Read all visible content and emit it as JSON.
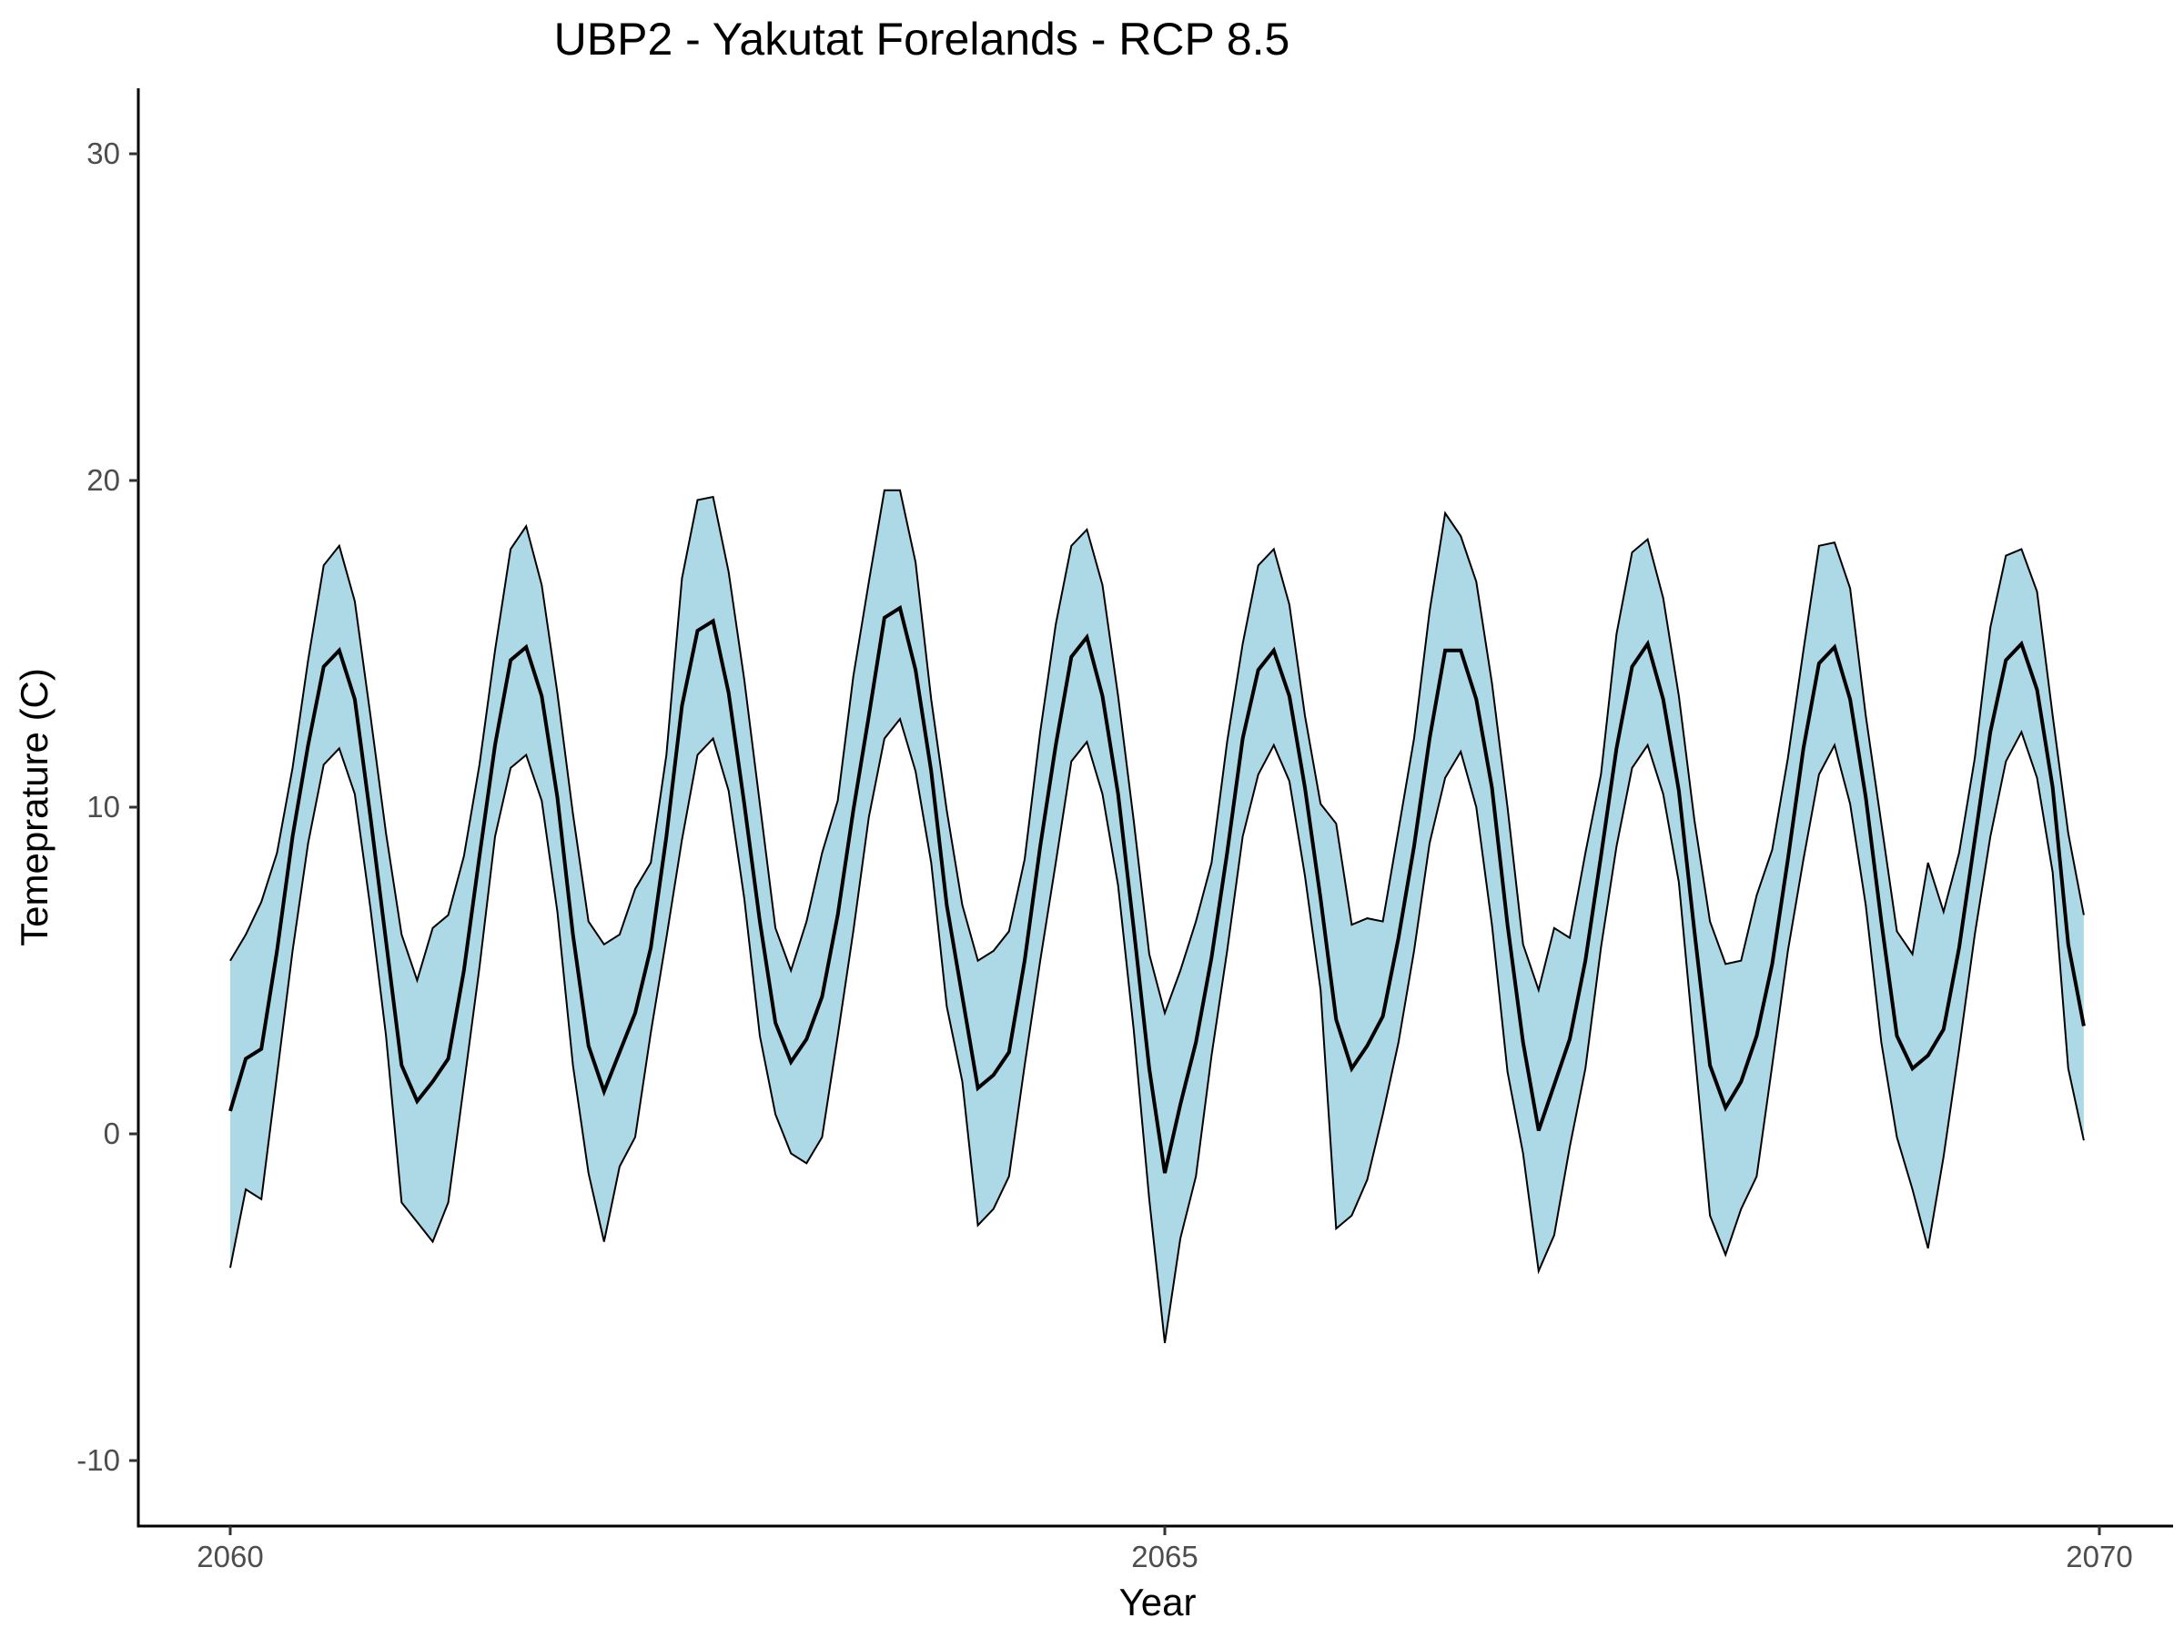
{
  "chart_data": {
    "type": "line",
    "title": "UBP2 - Yakutat Forelands - RCP 8.5",
    "xlabel": "Year",
    "ylabel": "Temeprature (C)",
    "xlim": [
      2059.5,
      2070.2
    ],
    "ylim": [
      -12,
      32
    ],
    "x_ticks": [
      2060,
      2065,
      2070
    ],
    "x_tick_labels": [
      "2060",
      "2065",
      "2070"
    ],
    "y_ticks": [
      -10,
      0,
      10,
      20,
      30
    ],
    "y_tick_labels": [
      "-10",
      "0",
      "10",
      "20",
      "30"
    ],
    "grid": false,
    "legend": "none",
    "band_fill_color": "#add8e6",
    "line_color": "#000000",
    "x_start": 2060,
    "x_step_months": 1,
    "series": [
      {
        "role": "upper",
        "values": [
          5.3,
          6.1,
          7.1,
          8.6,
          11.2,
          14.5,
          17.4,
          18.0,
          16.3,
          12.8,
          9.2,
          6.1,
          4.7,
          6.3,
          6.7,
          8.5,
          11.3,
          14.8,
          17.9,
          18.6,
          16.8,
          13.5,
          9.8,
          6.5,
          5.8,
          6.1,
          7.5,
          8.3,
          11.6,
          17.0,
          19.4,
          19.5,
          17.2,
          13.9,
          10.1,
          6.3,
          5.0,
          6.5,
          8.6,
          10.2,
          14.0,
          16.9,
          19.7,
          19.7,
          17.5,
          13.3,
          9.9,
          7.0,
          5.3,
          5.6,
          6.2,
          8.4,
          12.3,
          15.6,
          18.0,
          18.5,
          16.8,
          13.4,
          9.6,
          5.5,
          3.7,
          5.0,
          6.5,
          8.3,
          12.0,
          15.0,
          17.4,
          17.9,
          16.2,
          12.8,
          10.1,
          9.5,
          6.4,
          6.6,
          6.5,
          9.3,
          12.1,
          16.0,
          19.0,
          18.3,
          16.9,
          13.8,
          10.0,
          5.8,
          4.4,
          6.3,
          6.0,
          8.6,
          11.0,
          15.3,
          17.8,
          18.2,
          16.4,
          13.4,
          9.6,
          6.5,
          5.2,
          5.3,
          7.3,
          8.7,
          11.5,
          14.8,
          18.0,
          18.1,
          16.7,
          12.8,
          9.5,
          6.2,
          5.5,
          8.3,
          6.8,
          8.6,
          11.5,
          15.5,
          17.7,
          17.9,
          16.6,
          12.8,
          9.2,
          6.7
        ]
      },
      {
        "role": "mean",
        "values": [
          0.7,
          2.3,
          2.6,
          5.6,
          9.1,
          11.9,
          14.3,
          14.8,
          13.3,
          9.7,
          5.9,
          2.1,
          1.0,
          1.6,
          2.3,
          5.0,
          8.5,
          11.9,
          14.5,
          14.9,
          13.4,
          10.3,
          6.1,
          2.7,
          1.3,
          2.5,
          3.7,
          5.7,
          9.1,
          13.1,
          15.4,
          15.7,
          13.5,
          10.1,
          6.5,
          3.4,
          2.2,
          2.9,
          4.2,
          6.7,
          9.9,
          12.8,
          15.8,
          16.1,
          14.2,
          11.1,
          7.0,
          4.2,
          1.4,
          1.8,
          2.5,
          5.3,
          8.8,
          11.9,
          14.6,
          15.2,
          13.4,
          10.4,
          6.3,
          2.0,
          -1.2,
          0.9,
          2.8,
          5.4,
          8.6,
          12.1,
          14.2,
          14.8,
          13.4,
          10.6,
          7.2,
          3.5,
          2.0,
          2.7,
          3.6,
          6.0,
          8.8,
          12.1,
          14.8,
          14.8,
          13.3,
          10.6,
          6.4,
          2.8,
          0.1,
          1.5,
          2.9,
          5.3,
          8.5,
          11.8,
          14.3,
          15.0,
          13.3,
          10.5,
          6.2,
          2.1,
          0.8,
          1.6,
          3.0,
          5.2,
          8.4,
          11.8,
          14.4,
          14.9,
          13.3,
          10.3,
          6.5,
          3.0,
          2.0,
          2.4,
          3.2,
          5.7,
          9.0,
          12.3,
          14.5,
          15.0,
          13.6,
          10.6,
          5.8,
          3.3
        ]
      },
      {
        "role": "lower",
        "values": [
          -4.1,
          -1.7,
          -2.0,
          1.8,
          5.6,
          8.9,
          11.3,
          11.8,
          10.4,
          6.9,
          3.0,
          -2.1,
          -2.7,
          -3.3,
          -2.1,
          1.5,
          5.1,
          9.1,
          11.2,
          11.6,
          10.2,
          6.8,
          2.1,
          -1.2,
          -3.3,
          -1.0,
          -0.1,
          3.1,
          6.0,
          9.0,
          11.6,
          12.1,
          10.5,
          7.2,
          3.0,
          0.6,
          -0.6,
          -0.9,
          -0.1,
          3.0,
          6.2,
          9.7,
          12.1,
          12.7,
          11.1,
          8.3,
          3.9,
          1.6,
          -2.8,
          -2.3,
          -1.3,
          2.1,
          5.3,
          8.3,
          11.4,
          12.0,
          10.4,
          7.6,
          3.2,
          -2.0,
          -6.4,
          -3.2,
          -1.3,
          2.4,
          5.6,
          9.1,
          11.0,
          11.9,
          10.8,
          7.9,
          4.4,
          -2.9,
          -2.5,
          -1.4,
          0.6,
          2.8,
          5.6,
          8.9,
          10.9,
          11.7,
          10.0,
          6.4,
          1.9,
          -0.6,
          -4.2,
          -3.1,
          -0.4,
          2.0,
          5.7,
          8.8,
          11.2,
          11.9,
          10.4,
          7.7,
          2.6,
          -2.5,
          -3.7,
          -2.3,
          -1.3,
          2.1,
          5.6,
          8.4,
          11.0,
          11.9,
          10.1,
          7.0,
          2.8,
          -0.1,
          -1.7,
          -3.5,
          -0.7,
          2.6,
          6.1,
          9.1,
          11.4,
          12.3,
          10.9,
          8.0,
          2.0,
          -0.2
        ]
      }
    ]
  }
}
